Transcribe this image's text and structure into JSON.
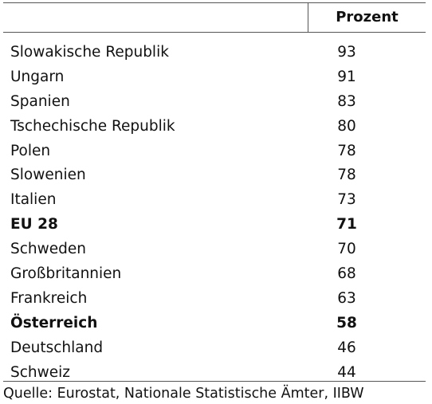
{
  "table": {
    "header": {
      "country": "",
      "value": "Prozent"
    },
    "rows": [
      {
        "country": "Slowakische Republik",
        "value": "93",
        "bold": false
      },
      {
        "country": "Ungarn",
        "value": "91",
        "bold": false
      },
      {
        "country": "Spanien",
        "value": "83",
        "bold": false
      },
      {
        "country": "Tschechische Republik",
        "value": "80",
        "bold": false
      },
      {
        "country": "Polen",
        "value": "78",
        "bold": false
      },
      {
        "country": "Slowenien",
        "value": "78",
        "bold": false
      },
      {
        "country": "Italien",
        "value": "73",
        "bold": false
      },
      {
        "country": "EU 28",
        "value": "71",
        "bold": true
      },
      {
        "country": "Schweden",
        "value": "70",
        "bold": false
      },
      {
        "country": "Großbritannien",
        "value": "68",
        "bold": false
      },
      {
        "country": "Frankreich",
        "value": "63",
        "bold": false
      },
      {
        "country": "Österreich",
        "value": "58",
        "bold": true
      },
      {
        "country": "Deutschland",
        "value": "46",
        "bold": false
      },
      {
        "country": "Schweiz",
        "value": "44",
        "bold": false
      }
    ]
  },
  "source": "Quelle: Eurostat, Nationale Statistische Ämter, IIBW"
}
